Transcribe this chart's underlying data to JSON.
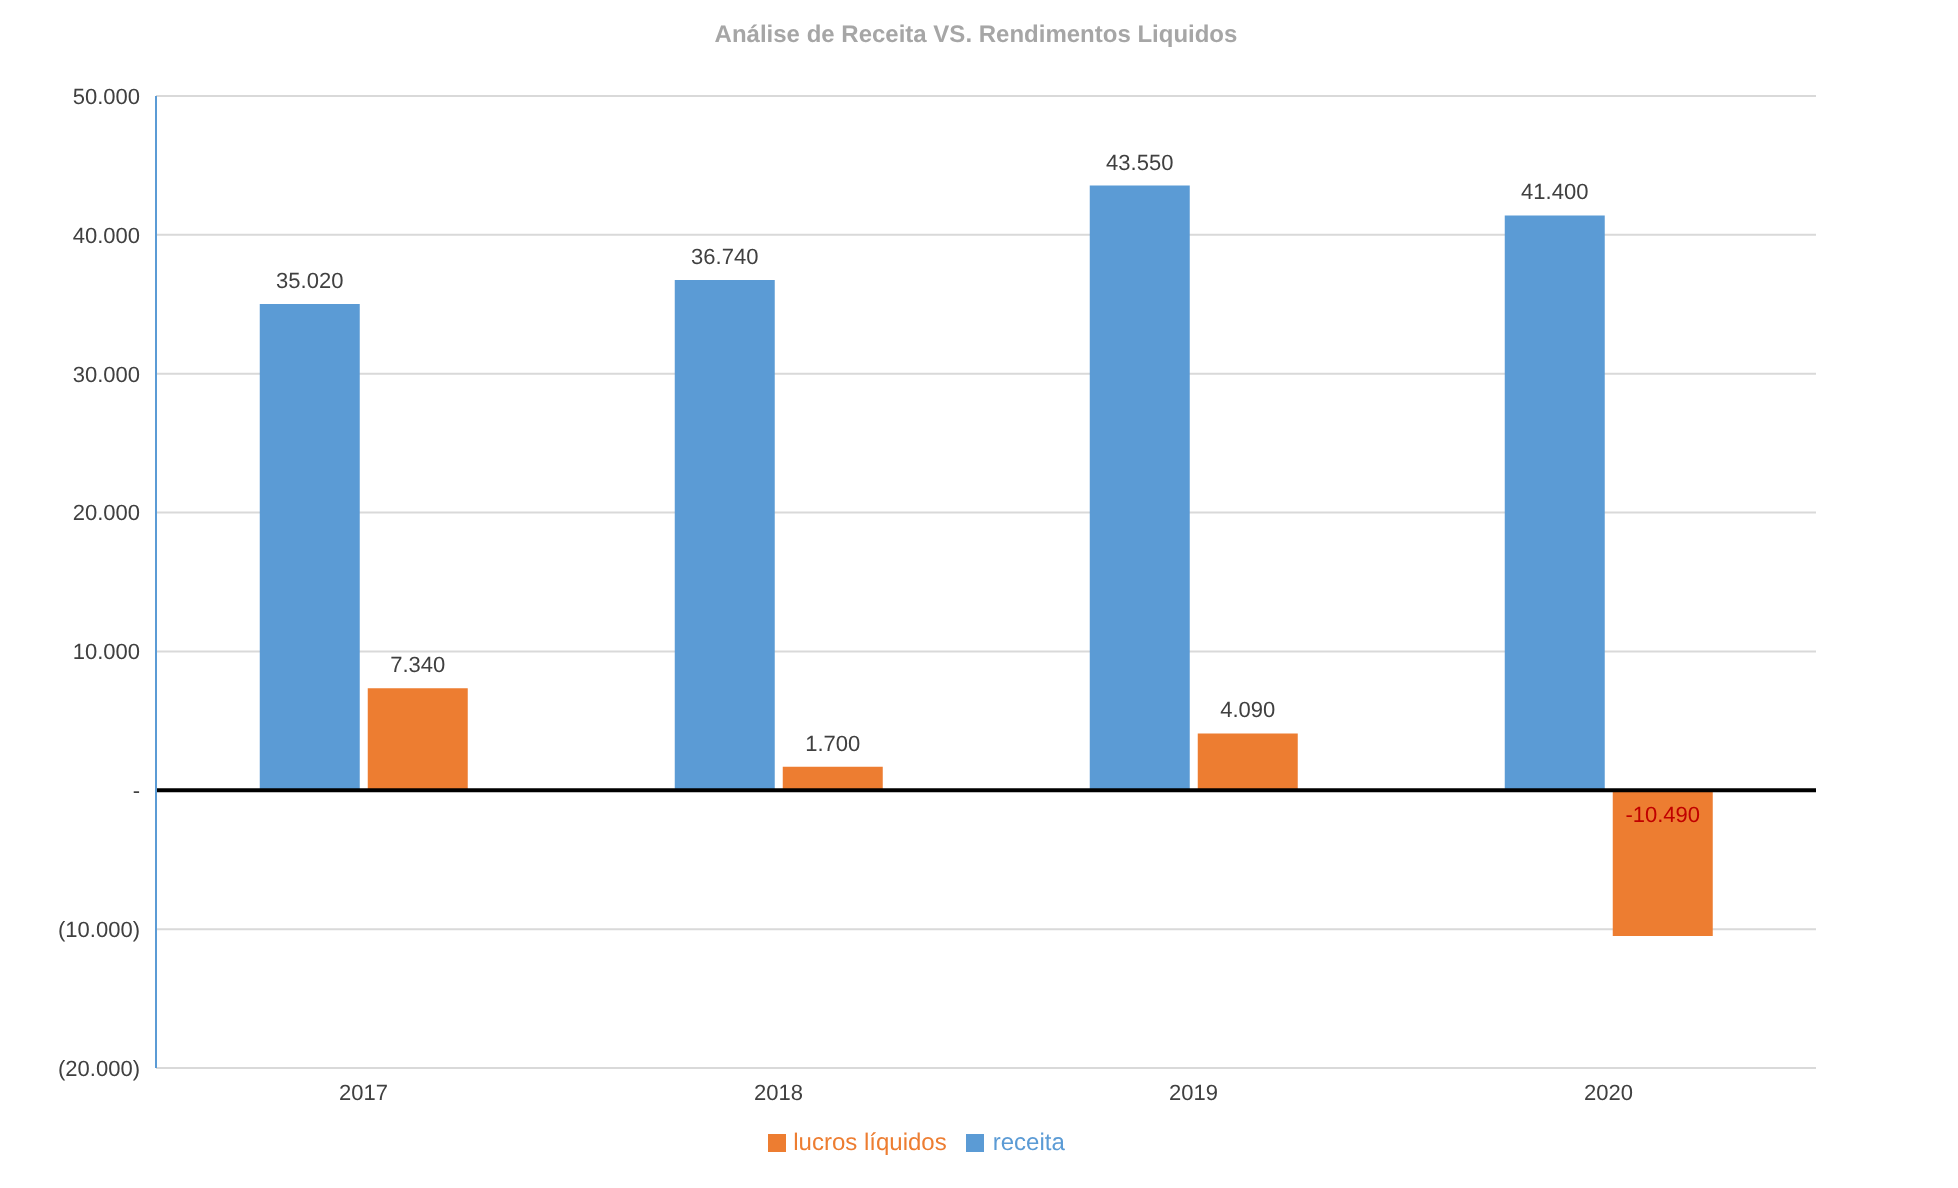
{
  "chart_data": {
    "type": "bar",
    "title": "Análise de Receita VS. Rendimentos Liquidos",
    "categories": [
      "2017",
      "2018",
      "2019",
      "2020"
    ],
    "series": [
      {
        "name": "receita",
        "color": "#5b9bd5",
        "values": [
          35020,
          36740,
          43550,
          41400
        ],
        "value_labels": [
          "35.020",
          "36.740",
          "43.550",
          "41.400"
        ]
      },
      {
        "name": "lucros líquidos",
        "color": "#ed7d31",
        "values": [
          7340,
          1700,
          4090,
          -10490
        ],
        "value_labels": [
          "7.340",
          "1.700",
          "4.090",
          "-10.490"
        ]
      }
    ],
    "ylim": [
      -20000,
      50000
    ],
    "yticks": [
      {
        "value": -20000,
        "label": "(20.000)"
      },
      {
        "value": -10000,
        "label": "(10.000)"
      },
      {
        "value": 0,
        "label": "-"
      },
      {
        "value": 10000,
        "label": "10.000"
      },
      {
        "value": 20000,
        "label": "20.000"
      },
      {
        "value": 30000,
        "label": "30.000"
      },
      {
        "value": 40000,
        "label": "40.000"
      },
      {
        "value": 50000,
        "label": "50.000"
      }
    ],
    "grid": "y",
    "legend": "bottom"
  }
}
